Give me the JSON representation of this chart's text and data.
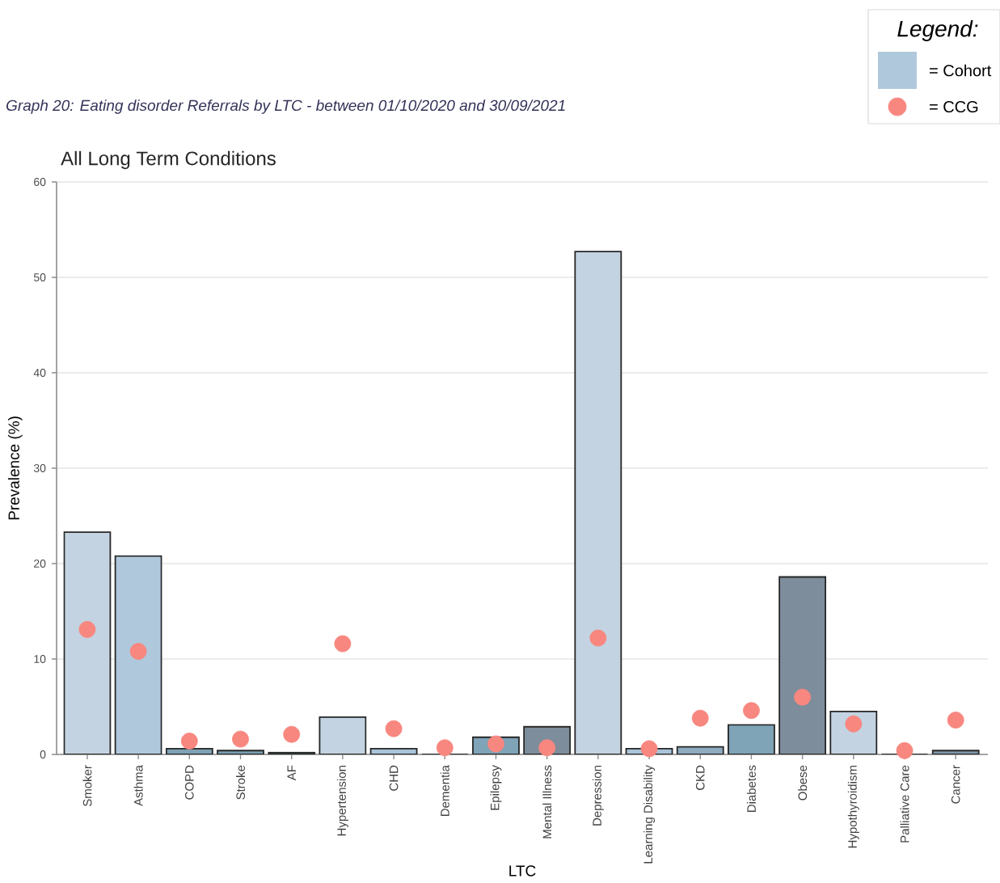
{
  "chart_data": {
    "type": "bar",
    "title": "Graph 20: Eating disorder Referrals by LTC - between 01/10/2020 and 30/09/2021",
    "subtitle": "All Long Term Conditions",
    "xlabel": "LTC",
    "ylabel": "Prevalence (%)",
    "legend_title": "Legend:",
    "categories": [
      "Smoker",
      "Asthma",
      "COPD",
      "Stroke",
      "AF",
      "Hypertension",
      "CHD",
      "Dementia",
      "Epilepsy",
      "Mental Illness",
      "Depression",
      "Learning Disability",
      "CKD",
      "Diabetes",
      "Obese",
      "Hypothyroidism",
      "Palliative Care",
      "Cancer"
    ],
    "series": [
      {
        "name": "= Cohort",
        "color": "#b0c8dc",
        "colors": [
          "#c3d3e1",
          "#b0c8dc",
          "#7fa1b5",
          "#7a9fb3",
          "#3a4a55",
          "#c3d3e1",
          "#a9c4da",
          "#7a9fb3",
          "#7fa3b7",
          "#7d8d9b",
          "#c3d3e1",
          "#a9c4da",
          "#8eabc0",
          "#7fa3b7",
          "#7d8d9b",
          "#c3d3e1",
          "#7a9fb3",
          "#7d97a8"
        ],
        "values": [
          23.3,
          20.8,
          0.6,
          0.4,
          0.2,
          3.9,
          0.6,
          0,
          1.8,
          2.9,
          52.7,
          0.6,
          0.8,
          3.1,
          18.6,
          4.5,
          0,
          0.4
        ]
      },
      {
        "type": "scatter",
        "name": "= CCG",
        "color": "#f8877f",
        "values": [
          13.1,
          10.8,
          1.4,
          1.6,
          2.1,
          11.6,
          2.7,
          0.7,
          1.1,
          0.7,
          12.2,
          0.6,
          3.8,
          4.6,
          6.0,
          3.2,
          0.4,
          3.6
        ]
      }
    ],
    "ylim": [
      0,
      60
    ],
    "yticks": [
      0,
      10,
      20,
      30,
      40,
      50,
      60
    ],
    "grid": "y",
    "legend": "top right",
    "marker": "circle"
  }
}
